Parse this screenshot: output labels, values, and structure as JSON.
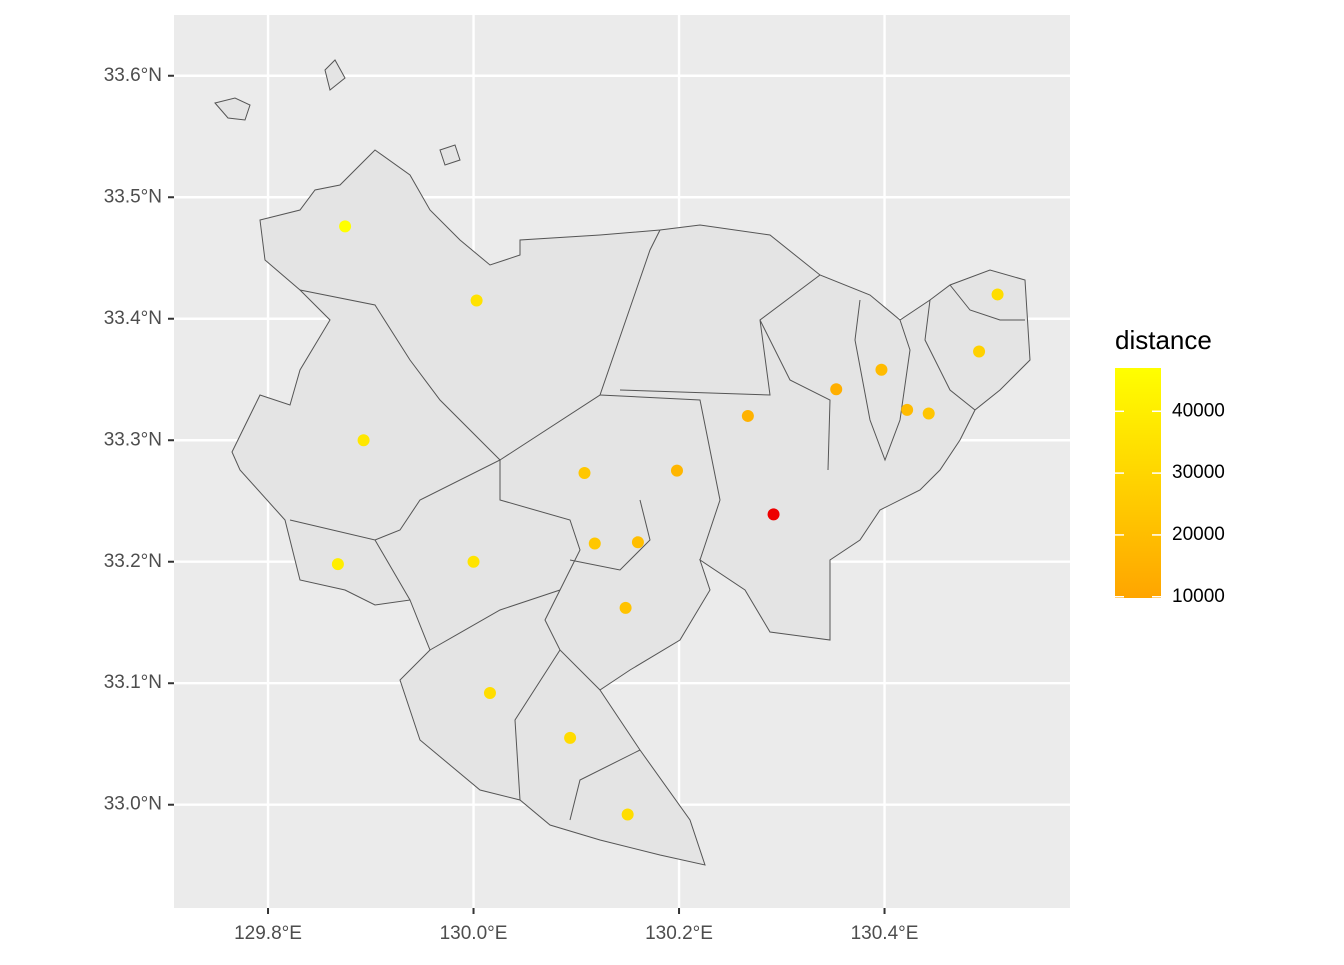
{
  "chart_data": {
    "type": "scatter",
    "x": [
      129.875,
      130.003,
      129.893,
      129.868,
      130.0,
      130.016,
      130.094,
      130.15,
      130.108,
      130.198,
      130.118,
      130.16,
      130.148,
      130.267,
      130.292,
      130.353,
      130.397,
      130.422,
      130.443,
      130.492,
      130.51
    ],
    "values": [
      33.476,
      33.415,
      33.3,
      33.198,
      33.2,
      33.092,
      33.055,
      32.992,
      33.273,
      33.275,
      33.215,
      33.216,
      33.162,
      33.32,
      33.239,
      33.342,
      33.358,
      33.325,
      33.322,
      33.373,
      33.42
    ],
    "color_values": [
      47000,
      35000,
      37000,
      40000,
      36000,
      33000,
      32000,
      33000,
      24000,
      17000,
      24000,
      20000,
      22000,
      15000,
      0,
      14000,
      19000,
      19000,
      23000,
      28000,
      33000
    ],
    "legend_title": "distance",
    "color_low": "#ffa500",
    "color_high": "#ffff00",
    "out_of_range_color": "#ee0000",
    "color_lim": [
      9800,
      47000
    ],
    "color_ticks": [
      10000,
      20000,
      30000,
      40000
    ],
    "xlim": [
      129.7085,
      130.5805
    ],
    "ylim": [
      32.915,
      33.65
    ],
    "xticks": [
      {
        "value": 129.8,
        "label": "129.8°E"
      },
      {
        "value": 130.0,
        "label": "130.0°E"
      },
      {
        "value": 130.2,
        "label": "130.2°E"
      },
      {
        "value": 130.4,
        "label": "130.4°E"
      }
    ],
    "yticks": [
      {
        "value": 33.0,
        "label": "33.0°N"
      },
      {
        "value": 33.1,
        "label": "33.1°N"
      },
      {
        "value": 33.2,
        "label": "33.2°N"
      },
      {
        "value": 33.3,
        "label": "33.3°N"
      },
      {
        "value": 33.4,
        "label": "33.4°N"
      },
      {
        "value": 33.5,
        "label": "33.5°N"
      },
      {
        "value": 33.6,
        "label": "33.6°N"
      }
    ],
    "grid": true
  }
}
